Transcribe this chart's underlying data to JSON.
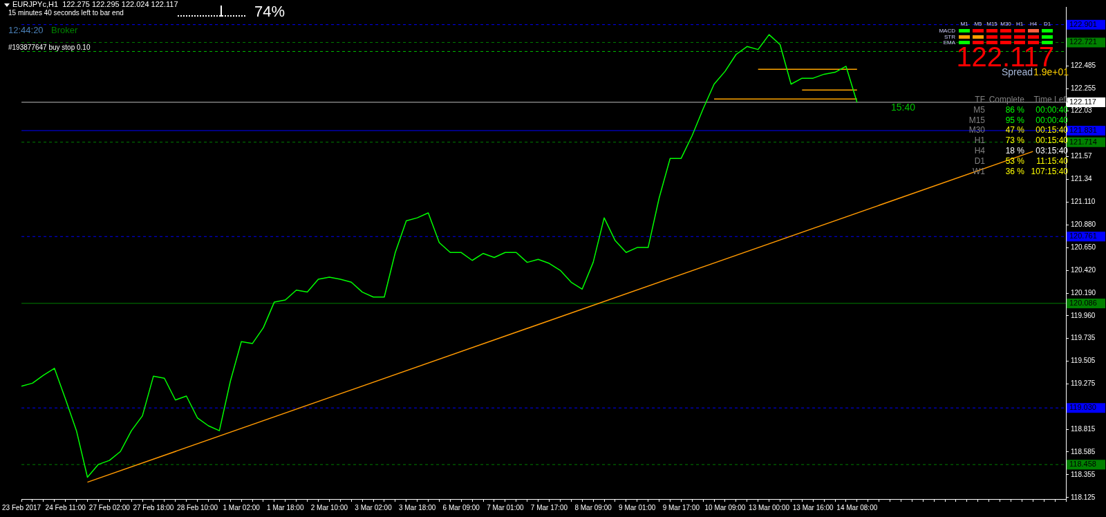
{
  "chart_data": {
    "type": "line",
    "title": "EURJPYc,H1  122.275 122.295 122.024 122.117",
    "categories": [
      "23 Feb 2017",
      null,
      null,
      null,
      "24 Feb 11:00",
      null,
      null,
      null,
      "27 Feb 02:00",
      null,
      null,
      null,
      "27 Feb 18:00",
      null,
      null,
      null,
      "28 Feb 10:00",
      null,
      null,
      null,
      "1 Mar 02:00",
      null,
      null,
      null,
      "1 Mar 18:00",
      null,
      null,
      null,
      "2 Mar 10:00",
      null,
      null,
      null,
      "3 Mar 02:00",
      null,
      null,
      null,
      "3 Mar 18:00",
      null,
      null,
      null,
      "6 Mar 09:00",
      null,
      null,
      null,
      "7 Mar 01:00",
      null,
      null,
      null,
      "7 Mar 17:00",
      null,
      null,
      null,
      "8 Mar 09:00",
      null,
      null,
      null,
      "9 Mar 01:00",
      null,
      null,
      null,
      "9 Mar 17:00",
      null,
      null,
      null,
      "10 Mar 09:00",
      null,
      null,
      null,
      "13 Mar 00:00",
      null,
      null,
      null,
      "13 Mar 16:00",
      null,
      null,
      null,
      "14 Mar 08:00",
      null,
      null,
      null,
      null,
      null,
      null,
      null,
      null,
      null,
      null,
      null,
      null,
      null,
      null,
      null,
      null,
      null,
      null,
      null
    ],
    "series": [
      {
        "color": "#00ff00",
        "values": [
          119.25,
          119.28,
          119.36,
          119.43,
          119.12,
          118.8,
          118.33,
          118.46,
          118.5,
          118.59,
          118.8,
          118.95,
          119.35,
          119.33,
          119.11,
          119.15,
          118.93,
          118.85,
          118.8,
          119.3,
          119.7,
          119.68,
          119.84,
          120.1,
          120.12,
          120.22,
          120.2,
          120.33,
          120.35,
          120.33,
          120.3,
          120.2,
          120.15,
          120.15,
          120.6,
          120.92,
          120.95,
          121.0,
          120.7,
          120.6,
          120.6,
          120.52,
          120.59,
          120.55,
          120.6,
          120.6,
          120.5,
          120.53,
          120.49,
          120.42,
          120.3,
          120.23,
          120.5,
          120.95,
          120.72,
          120.6,
          120.65,
          120.65,
          121.15,
          121.55,
          121.55,
          121.78,
          122.05,
          122.3,
          122.43,
          122.6,
          122.68,
          122.65,
          122.8,
          122.7,
          122.3,
          122.36,
          122.36,
          122.4,
          122.42,
          122.48,
          122.117,
          null,
          null,
          null,
          null,
          null,
          null,
          null,
          null,
          null,
          null,
          null,
          null,
          null,
          null,
          null,
          null,
          null,
          null,
          null
        ]
      },
      {
        "type": "line",
        "color": "#ff9900",
        "values": [
          null,
          null,
          null,
          null,
          null,
          null,
          118.28,
          null,
          null,
          null,
          null,
          null,
          null,
          null,
          null,
          null,
          null,
          null,
          null,
          null,
          null,
          null,
          null,
          null,
          null,
          null,
          null,
          null,
          null,
          null,
          null,
          null,
          null,
          null,
          null,
          null,
          null,
          null,
          null,
          null,
          null,
          null,
          null,
          null,
          null,
          null,
          null,
          null,
          null,
          null,
          null,
          null,
          null,
          null,
          null,
          null,
          null,
          null,
          null,
          null,
          null,
          null,
          null,
          null,
          null,
          null,
          null,
          null,
          null,
          null,
          null,
          null,
          null,
          null,
          null,
          null,
          null,
          null,
          null,
          null,
          null,
          null,
          null,
          null,
          null,
          null,
          null,
          null,
          null,
          null,
          null,
          null,
          121.62,
          null,
          null,
          null
        ]
      },
      {
        "type": "line",
        "color": "#ffa500",
        "values": [
          null,
          null,
          null,
          null,
          null,
          null,
          null,
          null,
          null,
          null,
          null,
          null,
          null,
          null,
          null,
          null,
          null,
          null,
          null,
          null,
          null,
          null,
          null,
          null,
          null,
          null,
          null,
          null,
          null,
          null,
          null,
          null,
          null,
          null,
          null,
          null,
          null,
          null,
          null,
          null,
          null,
          null,
          null,
          null,
          null,
          null,
          null,
          null,
          null,
          null,
          null,
          null,
          null,
          null,
          null,
          null,
          null,
          null,
          null,
          null,
          null,
          null,
          null,
          null,
          null,
          null,
          null,
          122.45,
          null,
          null,
          null,
          null,
          null,
          null,
          null,
          null,
          122.45,
          null,
          null,
          null,
          null,
          null,
          null,
          null,
          null,
          null,
          null,
          null,
          null,
          null,
          null,
          null,
          null,
          null,
          null,
          null
        ]
      },
      {
        "type": "line",
        "color": "#ffa500",
        "values": [
          null,
          null,
          null,
          null,
          null,
          null,
          null,
          null,
          null,
          null,
          null,
          null,
          null,
          null,
          null,
          null,
          null,
          null,
          null,
          null,
          null,
          null,
          null,
          null,
          null,
          null,
          null,
          null,
          null,
          null,
          null,
          null,
          null,
          null,
          null,
          null,
          null,
          null,
          null,
          null,
          null,
          null,
          null,
          null,
          null,
          null,
          null,
          null,
          null,
          null,
          null,
          null,
          null,
          null,
          null,
          null,
          null,
          null,
          null,
          null,
          null,
          null,
          null,
          null,
          null,
          null,
          null,
          null,
          null,
          null,
          null,
          122.24,
          null,
          null,
          null,
          null,
          122.24,
          null,
          null,
          null,
          null,
          null,
          null,
          null,
          null,
          null,
          null,
          null,
          null,
          null,
          null,
          null,
          null,
          null,
          null,
          null
        ]
      },
      {
        "type": "line",
        "color": "#ffa500",
        "values": [
          null,
          null,
          null,
          null,
          null,
          null,
          null,
          null,
          null,
          null,
          null,
          null,
          null,
          null,
          null,
          null,
          null,
          null,
          null,
          null,
          null,
          null,
          null,
          null,
          null,
          null,
          null,
          null,
          null,
          null,
          null,
          null,
          null,
          null,
          null,
          null,
          null,
          null,
          null,
          null,
          null,
          null,
          null,
          null,
          null,
          null,
          null,
          null,
          null,
          null,
          null,
          null,
          null,
          null,
          null,
          null,
          null,
          null,
          null,
          null,
          null,
          null,
          null,
          122.15,
          null,
          null,
          null,
          null,
          null,
          null,
          null,
          null,
          null,
          null,
          null,
          null,
          122.15,
          null,
          null,
          null,
          null,
          null,
          null,
          null,
          null,
          null,
          null,
          null,
          null,
          null,
          null,
          null,
          null,
          null,
          null,
          null
        ]
      }
    ],
    "ylim": [
      118.11,
      123.08
    ],
    "yticks": [
      122.485,
      122.255,
      122.03,
      121.57,
      121.34,
      {
        "value": 121.11,
        "label": "121.110"
      },
      {
        "value": 120.88,
        "label": "120.880"
      },
      {
        "value": 120.65,
        "label": "120.650"
      },
      {
        "value": 120.42,
        "label": "120.420"
      },
      {
        "value": 120.19,
        "label": "120.190"
      },
      {
        "value": 119.96,
        "label": "119.960"
      },
      119.735,
      119.505,
      119.275,
      118.815,
      118.585,
      118.355,
      118.125
    ],
    "ref_lines": [
      {
        "axis": "y",
        "value": 122.901,
        "label": "122.901",
        "color": "#0000ff",
        "line_style": "dashed"
      },
      {
        "axis": "y",
        "value": 122.721,
        "label": "122.721",
        "color": "#008000",
        "line_style": "dashed"
      },
      {
        "axis": "y",
        "value": 122.63,
        "color": "#00c000",
        "line_style": "dashed"
      },
      {
        "axis": "y",
        "value": 122.117,
        "label": "122.117",
        "color": "#c0c0c0",
        "line_style": "solid"
      },
      {
        "axis": "y",
        "value": 121.831,
        "label": "121.831",
        "color": "#0000ff",
        "line_style": "solid"
      },
      {
        "axis": "y",
        "value": 121.714,
        "label": "121.714",
        "color": "#008000",
        "line_style": "dashed"
      },
      {
        "axis": "y",
        "value": 120.761,
        "label": "120.761",
        "color": "#0000ff",
        "line_style": "dashed"
      },
      {
        "axis": "y",
        "value": 120.086,
        "label": "120.086",
        "color": "#008000",
        "line_style": "solid"
      },
      {
        "axis": "y",
        "value": 119.03,
        "label": "119.030",
        "color": "#0000ff",
        "line_style": "dashed"
      },
      {
        "axis": "y",
        "value": 118.458,
        "label": "118.458",
        "color": "#008000",
        "line_style": "dashed"
      }
    ],
    "annotations": [
      "15 minutes 40 seconds left to bar end",
      "74%",
      "12:44:20",
      "Broker",
      "#193877647 buy stop 0.10",
      "122.117",
      "Spread",
      "1.9e+01",
      "15:40",
      "TF",
      "Complete",
      "Time Left",
      "M5",
      "86 %",
      "00:00:40",
      "M15",
      "95 %",
      "00:00:40",
      "M30",
      "47 %",
      "00:15:40",
      "H1",
      "73 %",
      "00:15:40",
      "H4",
      "18 %",
      "03:15:40",
      "D1",
      "53 %",
      "11:15:40",
      "W1",
      "36 %",
      "107:15:40",
      "M1",
      "M5",
      "M15",
      "M30",
      "H1",
      "H4",
      "D1",
      "MACD",
      "STR",
      "EMA"
    ],
    "grid": false,
    "legend": false
  }
}
